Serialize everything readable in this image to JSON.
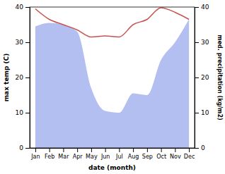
{
  "chart_data": {
    "type": "line",
    "x_label": "date (month)",
    "y_label": "max temp (C)",
    "y2_label": "med. precipitation (kg/m2)",
    "categories": [
      "Jan",
      "Feb",
      "Mar",
      "Apr",
      "May",
      "Jun",
      "Jul",
      "Aug",
      "Sep",
      "Oct",
      "Nov",
      "Dec"
    ],
    "series": [
      {
        "type": "line",
        "color": "#c8524e",
        "values": [
          39.5,
          36.5,
          35,
          33.5,
          31.5,
          31.8,
          31.5,
          35,
          36.5,
          39.8,
          38.5,
          36.5
        ]
      },
      {
        "type": "area",
        "color": "#b3bff0",
        "axis": "y2",
        "values": [
          34.5,
          35.5,
          35,
          33,
          17,
          10.5,
          10,
          15.5,
          15,
          25,
          30,
          36.5
        ]
      }
    ],
    "ylim": [
      0,
      40
    ],
    "yticks": [
      0,
      10,
      20,
      30,
      40
    ],
    "y2lim": [
      0,
      40
    ],
    "y2ticks": [
      0,
      10,
      20,
      30,
      40
    ]
  }
}
